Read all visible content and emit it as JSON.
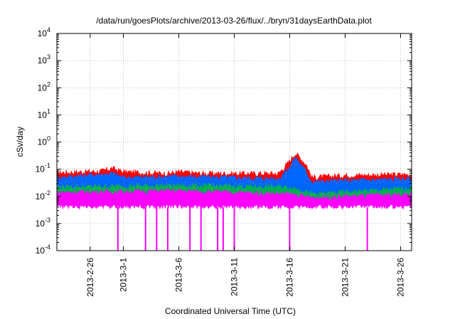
{
  "chart_data": {
    "type": "area",
    "title": "/data/run/goesPlots/archive/2013-03-26/flux/../bryn/31daysEarthData.plot",
    "xlabel": "Coordinated Universal Time (UTC)",
    "ylabel": "cSv/day",
    "yscale": "log",
    "ylim": [
      0.0001,
      10000
    ],
    "xlim": [
      "2013-02-23",
      "2013-03-27"
    ],
    "grid": true,
    "y_ticks": [
      {
        "value": 0.0001,
        "base": "10",
        "exp": "-4"
      },
      {
        "value": 0.001,
        "base": "10",
        "exp": "-3"
      },
      {
        "value": 0.01,
        "base": "10",
        "exp": "-2"
      },
      {
        "value": 0.1,
        "base": "10",
        "exp": "-1"
      },
      {
        "value": 1,
        "base": "10",
        "exp": "0"
      },
      {
        "value": 10,
        "base": "10",
        "exp": "1"
      },
      {
        "value": 100,
        "base": "10",
        "exp": "2"
      },
      {
        "value": 1000,
        "base": "10",
        "exp": "3"
      },
      {
        "value": 10000,
        "base": "10",
        "exp": "4"
      }
    ],
    "x_ticks": [
      {
        "date": "2013-02-26",
        "label": "2013-2-26"
      },
      {
        "date": "2013-03-01",
        "label": "2013-3-1"
      },
      {
        "date": "2013-03-06",
        "label": "2013-3-6"
      },
      {
        "date": "2013-03-11",
        "label": "2013-3-11"
      },
      {
        "date": "2013-03-16",
        "label": "2013-3-16"
      },
      {
        "date": "2013-03-21",
        "label": "2013-3-21"
      },
      {
        "date": "2013-03-26",
        "label": "2013-3-26"
      }
    ],
    "series": [
      {
        "color": "#ff0000",
        "baseline": 0.07,
        "points": [
          [
            "2013-02-23",
            0.075
          ],
          [
            "2013-02-27",
            0.085
          ],
          [
            "2013-02-28",
            0.11
          ],
          [
            "2013-03-01",
            0.08
          ],
          [
            "2013-03-05",
            0.07
          ],
          [
            "2013-03-06",
            0.08
          ],
          [
            "2013-03-08",
            0.07
          ],
          [
            "2013-03-15",
            0.07
          ],
          [
            "2013-03-16",
            0.2
          ],
          [
            "2013-03-16T12:00",
            0.4
          ],
          [
            "2013-03-17",
            0.25
          ],
          [
            "2013-03-17T12:00",
            0.15
          ],
          [
            "2013-03-18",
            0.05
          ],
          [
            "2013-03-21",
            0.06
          ],
          [
            "2013-03-27",
            0.065
          ]
        ]
      },
      {
        "color": "#0066ff",
        "baseline": 0.05,
        "points": [
          [
            "2013-02-23",
            0.05
          ],
          [
            "2013-02-28",
            0.07
          ],
          [
            "2013-03-01",
            0.05
          ],
          [
            "2013-03-06",
            0.055
          ],
          [
            "2013-03-15",
            0.045
          ],
          [
            "2013-03-16",
            0.12
          ],
          [
            "2013-03-16T12:00",
            0.28
          ],
          [
            "2013-03-17",
            0.15
          ],
          [
            "2013-03-17T12:00",
            0.08
          ],
          [
            "2013-03-18",
            0.035
          ],
          [
            "2013-03-27",
            0.045
          ]
        ]
      },
      {
        "color": "#00b050",
        "baseline": 0.022,
        "points": [
          [
            "2013-02-23",
            0.022
          ],
          [
            "2013-03-06",
            0.025
          ],
          [
            "2013-03-16",
            0.022
          ],
          [
            "2013-03-17",
            0.018
          ],
          [
            "2013-03-18",
            0.012
          ],
          [
            "2013-03-27",
            0.02
          ]
        ]
      },
      {
        "color": "#ff00ff",
        "baseline": 0.014,
        "low": 0.004,
        "points": [
          [
            "2013-02-23",
            0.014
          ],
          [
            "2013-03-06",
            0.016
          ],
          [
            "2013-03-16",
            0.012
          ],
          [
            "2013-03-18",
            0.009
          ],
          [
            "2013-03-27",
            0.012
          ]
        ],
        "spikes_down": [
          "2013-02-28T12:00",
          "2013-03-03",
          "2013-03-04",
          "2013-03-05",
          "2013-03-07",
          "2013-03-08",
          "2013-03-09T12:00",
          "2013-03-10",
          "2013-03-11",
          "2013-03-16",
          "2013-03-23",
          "2013-03-27"
        ]
      }
    ]
  }
}
